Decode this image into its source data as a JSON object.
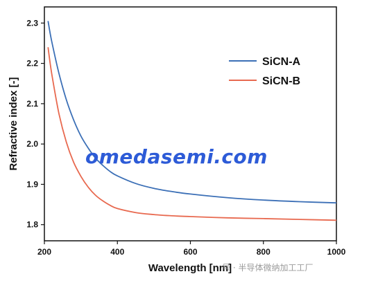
{
  "chart_data": {
    "type": "line",
    "title": "",
    "xlabel": "Wavelength [nm]",
    "ylabel": "Refractive index [-]",
    "xlim": [
      200,
      1000
    ],
    "ylim": [
      1.76,
      2.34
    ],
    "xticks": [
      200,
      400,
      600,
      800,
      1000
    ],
    "yticks": [
      1.8,
      1.9,
      2.0,
      2.1,
      2.2,
      2.3
    ],
    "grid": false,
    "legend_position": "top-right",
    "series": [
      {
        "name": "SiCN-A",
        "color": "#3b6fb6",
        "x": [
          210,
          220,
          240,
          260,
          280,
          300,
          320,
          340,
          360,
          380,
          400,
          450,
          500,
          550,
          600,
          700,
          800,
          900,
          1000
        ],
        "y": [
          2.305,
          2.255,
          2.175,
          2.11,
          2.06,
          2.02,
          1.99,
          1.965,
          1.947,
          1.932,
          1.921,
          1.902,
          1.89,
          1.882,
          1.876,
          1.867,
          1.861,
          1.857,
          1.854
        ]
      },
      {
        "name": "SiCN-B",
        "color": "#e8694f",
        "x": [
          210,
          220,
          240,
          260,
          280,
          300,
          320,
          340,
          360,
          380,
          400,
          450,
          500,
          550,
          600,
          700,
          800,
          900,
          1000
        ],
        "y": [
          2.24,
          2.175,
          2.075,
          2.005,
          1.955,
          1.92,
          1.893,
          1.873,
          1.859,
          1.848,
          1.84,
          1.83,
          1.825,
          1.822,
          1.82,
          1.817,
          1.815,
          1.813,
          1.811
        ]
      }
    ]
  },
  "watermark_text": "omedasemi.com",
  "caption_text": "号 · 半导体微纳加工工厂"
}
